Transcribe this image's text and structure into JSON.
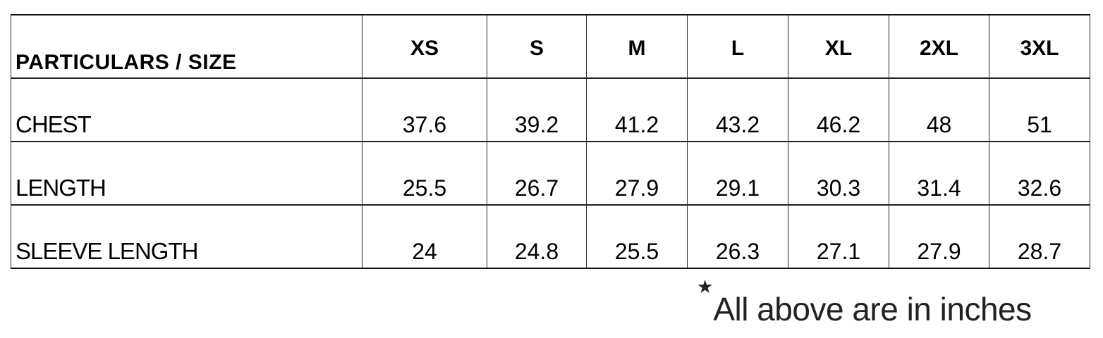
{
  "table": {
    "header_label": "PARTICULARS / SIZE",
    "sizes": [
      "XS",
      "S",
      "M",
      "L",
      "XL",
      "2XL",
      "3XL"
    ],
    "rows": [
      {
        "label": "CHEST",
        "values": [
          "37.6",
          "39.2",
          "41.2",
          "43.2",
          "46.2",
          "48",
          "51"
        ]
      },
      {
        "label": "LENGTH",
        "values": [
          "25.5",
          "26.7",
          "27.9",
          "29.1",
          "30.3",
          "31.4",
          "32.6"
        ]
      },
      {
        "label": "SLEEVE LENGTH",
        "values": [
          "24",
          "24.8",
          "25.5",
          "26.3",
          "27.1",
          "27.9",
          "28.7"
        ]
      }
    ]
  },
  "note": {
    "symbol": "★",
    "text": "All above are in inches"
  }
}
